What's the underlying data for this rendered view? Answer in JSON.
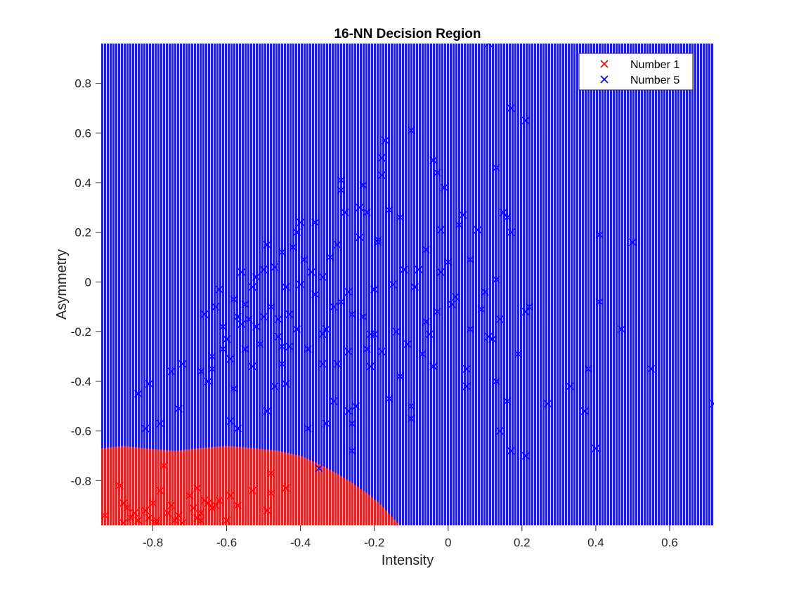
{
  "chart_data": {
    "type": "scatter",
    "title": "16-NN Decision Region",
    "xlabel": "Intensity",
    "ylabel": "Asymmetry",
    "xlim": [
      -0.94,
      0.72
    ],
    "ylim": [
      -0.98,
      0.96
    ],
    "xticks": [
      -0.8,
      -0.6,
      -0.4,
      -0.2,
      0,
      0.2,
      0.4,
      0.6
    ],
    "xtick_labels": [
      "-0.8",
      "-0.6",
      "-0.4",
      "-0.2",
      "0",
      "0.2",
      "0.4",
      "0.6"
    ],
    "yticks": [
      -0.8,
      -0.6,
      -0.4,
      -0.2,
      0,
      0.2,
      0.4,
      0.6,
      0.8
    ],
    "ytick_labels": [
      "-0.8",
      "-0.6",
      "-0.4",
      "-0.2",
      "0",
      "0.2",
      "0.4",
      "0.6",
      "0.8"
    ],
    "legend_position": "top-right",
    "grid": false,
    "region": {
      "background_class": "Number 5",
      "background_color": "#0000ff",
      "class1_color": "#ff0000",
      "class1_boundary": [
        [
          -0.94,
          -0.67
        ],
        [
          -0.88,
          -0.66
        ],
        [
          -0.82,
          -0.67
        ],
        [
          -0.74,
          -0.68
        ],
        [
          -0.68,
          -0.67
        ],
        [
          -0.6,
          -0.66
        ],
        [
          -0.52,
          -0.67
        ],
        [
          -0.46,
          -0.68
        ],
        [
          -0.4,
          -0.7
        ],
        [
          -0.34,
          -0.74
        ],
        [
          -0.28,
          -0.79
        ],
        [
          -0.22,
          -0.85
        ],
        [
          -0.18,
          -0.9
        ],
        [
          -0.15,
          -0.95
        ],
        [
          -0.13,
          -0.98
        ]
      ]
    },
    "series": [
      {
        "name": "Number 1",
        "color": "#ff0000",
        "marker": "x",
        "points": [
          [
            -0.93,
            -0.94
          ],
          [
            -0.89,
            -0.82
          ],
          [
            -0.88,
            -0.89
          ],
          [
            -0.87,
            -0.91
          ],
          [
            -0.86,
            -0.95
          ],
          [
            -0.85,
            -0.93
          ],
          [
            -0.84,
            -0.96
          ],
          [
            -0.82,
            -0.92
          ],
          [
            -0.81,
            -0.95
          ],
          [
            -0.8,
            -0.89
          ],
          [
            -0.79,
            -0.97
          ],
          [
            -0.78,
            -0.84
          ],
          [
            -0.77,
            -0.74
          ],
          [
            -0.76,
            -0.93
          ],
          [
            -0.75,
            -0.9
          ],
          [
            -0.74,
            -0.96
          ],
          [
            -0.73,
            -0.94
          ],
          [
            -0.72,
            -0.97
          ],
          [
            -0.7,
            -0.86
          ],
          [
            -0.69,
            -0.91
          ],
          [
            -0.68,
            -0.83
          ],
          [
            -0.68,
            -0.95
          ],
          [
            -0.67,
            -0.93
          ],
          [
            -0.65,
            -0.89
          ],
          [
            -0.64,
            -0.91
          ],
          [
            -0.63,
            -0.9
          ],
          [
            -0.62,
            -0.88
          ],
          [
            -0.6,
            -0.96
          ],
          [
            -0.59,
            -0.86
          ],
          [
            -0.57,
            -0.9
          ],
          [
            -0.53,
            -0.84
          ],
          [
            -0.49,
            -0.92
          ],
          [
            -0.48,
            -0.77
          ],
          [
            -0.48,
            -0.85
          ],
          [
            -0.44,
            -0.83
          ],
          [
            -0.88,
            -0.97
          ],
          [
            -0.79,
            -0.96
          ],
          [
            -0.67,
            -0.96
          ],
          [
            -0.66,
            -0.88
          ]
        ]
      },
      {
        "name": "Number 5",
        "color": "#0000ff",
        "marker": "x",
        "points": [
          [
            0.11,
            0.96
          ],
          [
            0.17,
            0.7
          ],
          [
            0.21,
            0.65
          ],
          [
            0.13,
            0.46
          ],
          [
            0.72,
            -0.49
          ],
          [
            0.55,
            -0.35
          ],
          [
            0.5,
            0.16
          ],
          [
            0.47,
            -0.19
          ],
          [
            0.41,
            0.19
          ],
          [
            0.41,
            -0.08
          ],
          [
            0.4,
            -0.67
          ],
          [
            0.38,
            -0.35
          ],
          [
            0.37,
            -0.52
          ],
          [
            0.33,
            -0.42
          ],
          [
            0.27,
            -0.49
          ],
          [
            0.21,
            -0.7
          ],
          [
            0.17,
            -0.68
          ],
          [
            0.16,
            -0.48
          ],
          [
            0.14,
            -0.6
          ],
          [
            0.13,
            -0.4
          ],
          [
            0.15,
            0.28
          ],
          [
            0.16,
            0.26
          ],
          [
            0.17,
            0.2
          ],
          [
            0.13,
            0.01
          ],
          [
            0.11,
            -0.22
          ],
          [
            0.1,
            -0.04
          ],
          [
            0.08,
            0.21
          ],
          [
            0.06,
            -0.19
          ],
          [
            0.05,
            -0.35
          ],
          [
            0.05,
            -0.42
          ],
          [
            0.04,
            0.27
          ],
          [
            0.03,
            0.23
          ],
          [
            0.01,
            -0.09
          ],
          [
            -0.01,
            0.38
          ],
          [
            -0.02,
            0.21
          ],
          [
            -0.03,
            0.44
          ],
          [
            -0.04,
            0.49
          ],
          [
            -0.04,
            -0.34
          ],
          [
            -0.06,
            0.13
          ],
          [
            -0.08,
            0.05
          ],
          [
            -0.09,
            -0.02
          ],
          [
            -0.1,
            -0.5
          ],
          [
            -0.1,
            -0.55
          ],
          [
            -0.1,
            0.61
          ],
          [
            -0.13,
            0.26
          ],
          [
            -0.15,
            -0.01
          ],
          [
            -0.16,
            0.29
          ],
          [
            -0.17,
            0.57
          ],
          [
            -0.18,
            0.43
          ],
          [
            -0.18,
            0.5
          ],
          [
            -0.19,
            0.17
          ],
          [
            -0.2,
            -0.03
          ],
          [
            -0.21,
            -0.21
          ],
          [
            -0.22,
            0.28
          ],
          [
            -0.23,
            0.39
          ],
          [
            -0.24,
            0.3
          ],
          [
            -0.25,
            -0.5
          ],
          [
            -0.26,
            -0.57
          ],
          [
            -0.26,
            -0.68
          ],
          [
            -0.27,
            -0.28
          ],
          [
            -0.27,
            -0.52
          ],
          [
            -0.28,
            0.28
          ],
          [
            -0.29,
            0.37
          ],
          [
            -0.29,
            0.41
          ],
          [
            -0.3,
            0.15
          ],
          [
            -0.3,
            -0.33
          ],
          [
            -0.31,
            -0.1
          ],
          [
            -0.32,
            0.1
          ],
          [
            -0.33,
            -0.19
          ],
          [
            -0.34,
            0.02
          ],
          [
            -0.35,
            -0.75
          ],
          [
            -0.36,
            0.24
          ],
          [
            -0.38,
            -0.59
          ],
          [
            -0.38,
            -0.27
          ],
          [
            -0.39,
            0.09
          ],
          [
            -0.4,
            0.24
          ],
          [
            -0.41,
            0.2
          ],
          [
            -0.42,
            0.14
          ],
          [
            -0.43,
            -0.13
          ],
          [
            -0.44,
            -0.02
          ],
          [
            -0.45,
            -0.26
          ],
          [
            -0.45,
            -0.33
          ],
          [
            -0.46,
            -0.22
          ],
          [
            -0.47,
            0.06
          ],
          [
            -0.48,
            -0.1
          ],
          [
            -0.49,
            0.15
          ],
          [
            -0.5,
            -0.14
          ],
          [
            -0.51,
            -0.25
          ],
          [
            -0.52,
            0.02
          ],
          [
            -0.53,
            -0.02
          ],
          [
            -0.54,
            -0.15
          ],
          [
            -0.55,
            -0.27
          ],
          [
            -0.56,
            0.04
          ],
          [
            -0.57,
            -0.14
          ],
          [
            -0.58,
            -0.07
          ],
          [
            -0.58,
            -0.43
          ],
          [
            -0.59,
            -0.56
          ],
          [
            -0.6,
            -0.23
          ],
          [
            -0.61,
            -0.27
          ],
          [
            -0.62,
            -0.03
          ],
          [
            -0.63,
            -0.1
          ],
          [
            -0.64,
            -0.3
          ],
          [
            -0.65,
            -0.4
          ],
          [
            -0.66,
            -0.13
          ],
          [
            -0.67,
            -0.36
          ],
          [
            -0.72,
            -0.33
          ],
          [
            -0.73,
            -0.51
          ],
          [
            -0.75,
            -0.36
          ],
          [
            -0.78,
            -0.57
          ],
          [
            -0.81,
            -0.41
          ],
          [
            -0.82,
            -0.59
          ],
          [
            -0.84,
            -0.45
          ],
          [
            -0.57,
            -0.59
          ],
          [
            -0.53,
            -0.34
          ],
          [
            -0.49,
            -0.52
          ],
          [
            -0.47,
            -0.42
          ],
          [
            -0.44,
            -0.41
          ],
          [
            -0.37,
            0.04
          ],
          [
            -0.36,
            -0.05
          ],
          [
            -0.34,
            -0.21
          ],
          [
            -0.33,
            -0.57
          ],
          [
            -0.31,
            -0.48
          ],
          [
            -0.29,
            -0.08
          ],
          [
            -0.27,
            -0.04
          ],
          [
            -0.23,
            -0.14
          ],
          [
            -0.22,
            -0.27
          ],
          [
            -0.21,
            -0.34
          ],
          [
            -0.2,
            -0.21
          ],
          [
            -0.19,
            0.16
          ],
          [
            -0.18,
            -0.28
          ],
          [
            -0.16,
            -0.47
          ],
          [
            -0.14,
            -0.2
          ],
          [
            -0.13,
            -0.38
          ],
          [
            -0.12,
            0.05
          ],
          [
            -0.11,
            -0.25
          ],
          [
            -0.07,
            -0.29
          ],
          [
            -0.06,
            -0.16
          ],
          [
            -0.05,
            -0.21
          ],
          [
            -0.03,
            -0.12
          ],
          [
            -0.02,
            0.04
          ],
          [
            0.0,
            0.08
          ],
          [
            0.02,
            -0.06
          ],
          [
            0.06,
            0.09
          ],
          [
            0.09,
            -0.11
          ],
          [
            0.12,
            -0.23
          ],
          [
            0.14,
            -0.15
          ],
          [
            0.19,
            -0.29
          ],
          [
            0.21,
            -0.12
          ],
          [
            0.22,
            -0.1
          ],
          [
            -0.24,
            0.18
          ],
          [
            -0.26,
            -0.13
          ],
          [
            -0.34,
            -0.33
          ],
          [
            -0.41,
            -0.19
          ],
          [
            -0.43,
            -0.26
          ],
          [
            -0.46,
            -0.15
          ],
          [
            -0.5,
            0.05
          ],
          [
            -0.52,
            -0.18
          ],
          [
            -0.55,
            -0.09
          ],
          [
            -0.59,
            -0.31
          ],
          [
            -0.61,
            -0.18
          ],
          [
            -0.64,
            -0.35
          ],
          [
            -0.56,
            -0.17
          ],
          [
            -0.4,
            -0.01
          ],
          [
            -0.45,
            0.12
          ]
        ]
      }
    ]
  }
}
